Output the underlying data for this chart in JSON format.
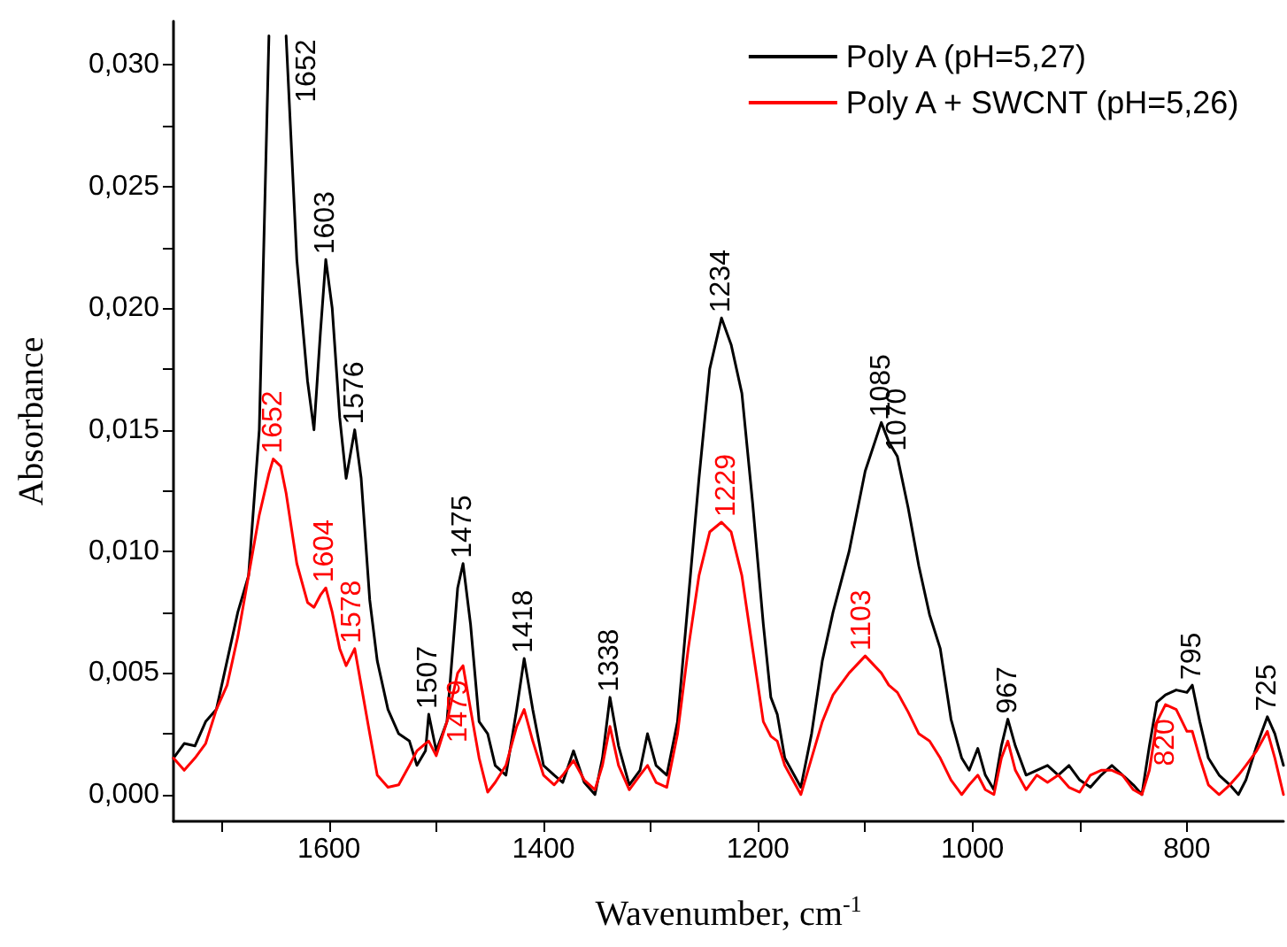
{
  "chart_data": {
    "type": "line",
    "xlabel": "Wavenumber, cm$^{-1}$",
    "ylabel": "Absorbance",
    "x": [
      1745,
      1735,
      1725,
      1715,
      1705,
      1695,
      1685,
      1675,
      1665,
      1656,
      1652,
      1645,
      1640,
      1630,
      1620,
      1614,
      1608,
      1603,
      1597,
      1590,
      1584,
      1576,
      1570,
      1562,
      1555,
      1545,
      1535,
      1525,
      1518,
      1510,
      1507,
      1500,
      1490,
      1480,
      1475,
      1468,
      1460,
      1452,
      1445,
      1435,
      1425,
      1418,
      1410,
      1400,
      1390,
      1382,
      1372,
      1362,
      1352,
      1345,
      1338,
      1330,
      1320,
      1310,
      1303,
      1295,
      1285,
      1275,
      1265,
      1255,
      1245,
      1234,
      1225,
      1215,
      1205,
      1195,
      1188,
      1182,
      1175,
      1160,
      1150,
      1140,
      1130,
      1115,
      1100,
      1085,
      1078,
      1070,
      1060,
      1050,
      1040,
      1030,
      1020,
      1010,
      1003,
      995,
      988,
      980,
      973,
      967,
      960,
      950,
      940,
      930,
      920,
      910,
      900,
      890,
      880,
      870,
      860,
      850,
      842,
      835,
      828,
      820,
      810,
      800,
      795,
      788,
      780,
      770,
      760,
      752,
      745,
      735,
      725,
      718,
      710
    ],
    "series": [
      {
        "name": "Poly A (pH=5,27)",
        "color": "#000000",
        "values": [
          0.0015,
          0.0021,
          0.002,
          0.003,
          0.0035,
          0.0055,
          0.0075,
          0.009,
          0.015,
          0.0312,
          null,
          null,
          0.0312,
          0.022,
          0.017,
          0.015,
          0.019,
          0.022,
          0.02,
          0.0155,
          0.013,
          0.015,
          0.013,
          0.008,
          0.0055,
          0.0035,
          0.0025,
          0.0022,
          0.0012,
          0.0018,
          0.0033,
          0.0018,
          0.003,
          0.0085,
          0.0095,
          0.007,
          0.003,
          0.0025,
          0.0012,
          0.0008,
          0.0035,
          0.0056,
          0.0035,
          0.0012,
          0.0008,
          0.0005,
          0.0018,
          0.0005,
          0.0,
          0.0015,
          0.004,
          0.002,
          0.0004,
          0.001,
          0.0025,
          0.0012,
          0.0008,
          0.003,
          0.008,
          0.013,
          0.0175,
          0.0196,
          0.0185,
          0.0165,
          0.012,
          0.007,
          0.004,
          0.0033,
          0.0015,
          0.0003,
          0.0025,
          0.0055,
          0.0075,
          0.01,
          0.0133,
          0.0153,
          0.0145,
          0.0139,
          0.0118,
          0.0094,
          0.0074,
          0.006,
          0.0031,
          0.0015,
          0.001,
          0.0019,
          0.0008,
          0.0002,
          0.002,
          0.0031,
          0.002,
          0.0008,
          0.001,
          0.0012,
          0.0008,
          0.0012,
          0.0006,
          0.0003,
          0.0008,
          0.0012,
          0.0008,
          0.0004,
          0.0,
          0.002,
          0.0038,
          0.0041,
          0.0043,
          0.0042,
          0.0045,
          0.003,
          0.0015,
          0.0008,
          0.0004,
          0.0,
          0.0006,
          0.002,
          0.0032,
          0.0025,
          0.0012
        ]
      },
      {
        "name": "Poly A + SWCNT (pH=5,26)",
        "color": "#ff0000",
        "values": [
          0.0015,
          0.001,
          0.0015,
          0.0021,
          0.0035,
          0.0045,
          0.0065,
          0.009,
          0.0115,
          0.0132,
          0.0138,
          0.0135,
          0.0124,
          0.0095,
          0.0079,
          0.0077,
          0.0082,
          0.0085,
          0.0075,
          0.006,
          0.0053,
          0.006,
          0.0045,
          0.0025,
          0.0008,
          0.0003,
          0.0004,
          0.0012,
          0.0018,
          0.0021,
          0.0022,
          0.0016,
          0.003,
          0.005,
          0.0053,
          0.0035,
          0.0015,
          0.0001,
          0.0005,
          0.0012,
          0.0028,
          0.0035,
          0.0022,
          0.0008,
          0.0004,
          0.0008,
          0.0014,
          0.0006,
          0.0002,
          0.0012,
          0.0028,
          0.0012,
          0.0002,
          0.0008,
          0.0012,
          0.0005,
          0.0003,
          0.0025,
          0.006,
          0.009,
          0.0108,
          0.0112,
          0.0108,
          0.009,
          0.006,
          0.003,
          0.0024,
          0.0022,
          0.0012,
          0.0,
          0.0015,
          0.003,
          0.0041,
          0.005,
          0.0057,
          0.005,
          0.0045,
          0.0042,
          0.0034,
          0.0025,
          0.0022,
          0.0015,
          0.0006,
          0.0,
          0.0004,
          0.0008,
          0.0002,
          0.0,
          0.0015,
          0.0022,
          0.001,
          0.0002,
          0.0008,
          0.0005,
          0.0008,
          0.0003,
          0.0001,
          0.0008,
          0.001,
          0.001,
          0.0008,
          0.0002,
          0.0,
          0.001,
          0.003,
          0.0037,
          0.0035,
          0.0026,
          0.0026,
          0.0015,
          0.0004,
          0.0,
          0.0004,
          0.0008,
          0.0012,
          0.0018,
          0.0026,
          0.0015,
          0.0
        ]
      }
    ],
    "xlim": [
      1745,
      710
    ],
    "xticks": [
      {
        "value": 1700,
        "label": null
      },
      1600,
      {
        "value": 1500,
        "label": null
      },
      1400,
      {
        "value": 1300,
        "label": null
      },
      1200,
      {
        "value": 1100,
        "label": null
      },
      1000,
      {
        "value": 900,
        "label": null
      },
      800
    ],
    "ylim": [
      -0.0011,
      0.0318
    ],
    "yticks": [
      {
        "value": 0,
        "label": "0,000"
      },
      {
        "value": 0.0025,
        "label": null
      },
      {
        "value": 0.005,
        "label": "0,005"
      },
      {
        "value": 0.0075,
        "label": null
      },
      {
        "value": 0.01,
        "label": "0,010"
      },
      {
        "value": 0.0125,
        "label": null
      },
      {
        "value": 0.015,
        "label": "0,015"
      },
      {
        "value": 0.0175,
        "label": null
      },
      {
        "value": 0.02,
        "label": "0,020"
      },
      {
        "value": 0.0225,
        "label": null
      },
      {
        "value": 0.025,
        "label": "0,025"
      },
      {
        "value": 0.0275,
        "label": null
      },
      {
        "value": 0.03,
        "label": "0,030"
      }
    ],
    "grid": false,
    "legend": "top right",
    "marker": "none",
    "line_style": "solid",
    "annotations": [
      {
        "text": "1652",
        "x": 1640,
        "y": 0.0312
      },
      {
        "text": "1603",
        "x": 1603,
        "y": 0.022
      },
      {
        "text": "1576",
        "x": 1576,
        "y": 0.015
      },
      {
        "text": "1507",
        "x": 1507,
        "y": 0.0033
      },
      {
        "text": "1475",
        "x": 1475,
        "y": 0.0095
      },
      {
        "text": "1418",
        "x": 1418,
        "y": 0.0056
      },
      {
        "text": "1338",
        "x": 1338,
        "y": 0.004
      },
      {
        "text": "1234",
        "x": 1234,
        "y": 0.0196
      },
      {
        "text": "1085",
        "x": 1085,
        "y": 0.0153
      },
      {
        "text": "1070",
        "x": 1070,
        "y": 0.0139
      },
      {
        "text": "967",
        "x": 967,
        "y": 0.0031
      },
      {
        "text": "795",
        "x": 795,
        "y": 0.0045
      },
      {
        "text": "725",
        "x": 725,
        "y": 0.0032
      },
      {
        "text": "1652",
        "x": 1652,
        "y": 0.0138
      },
      {
        "text": "1604",
        "x": 1604,
        "y": 0.0085
      },
      {
        "text": "1578",
        "x": 1578,
        "y": 0.006
      },
      {
        "text": "1479",
        "x": 1479,
        "y": 0.0053
      },
      {
        "text": "1229",
        "x": 1229,
        "y": 0.0112
      },
      {
        "text": "1103",
        "x": 1103,
        "y": 0.0057
      },
      {
        "text": "820",
        "x": 820,
        "y": 0.0037
      }
    ]
  }
}
